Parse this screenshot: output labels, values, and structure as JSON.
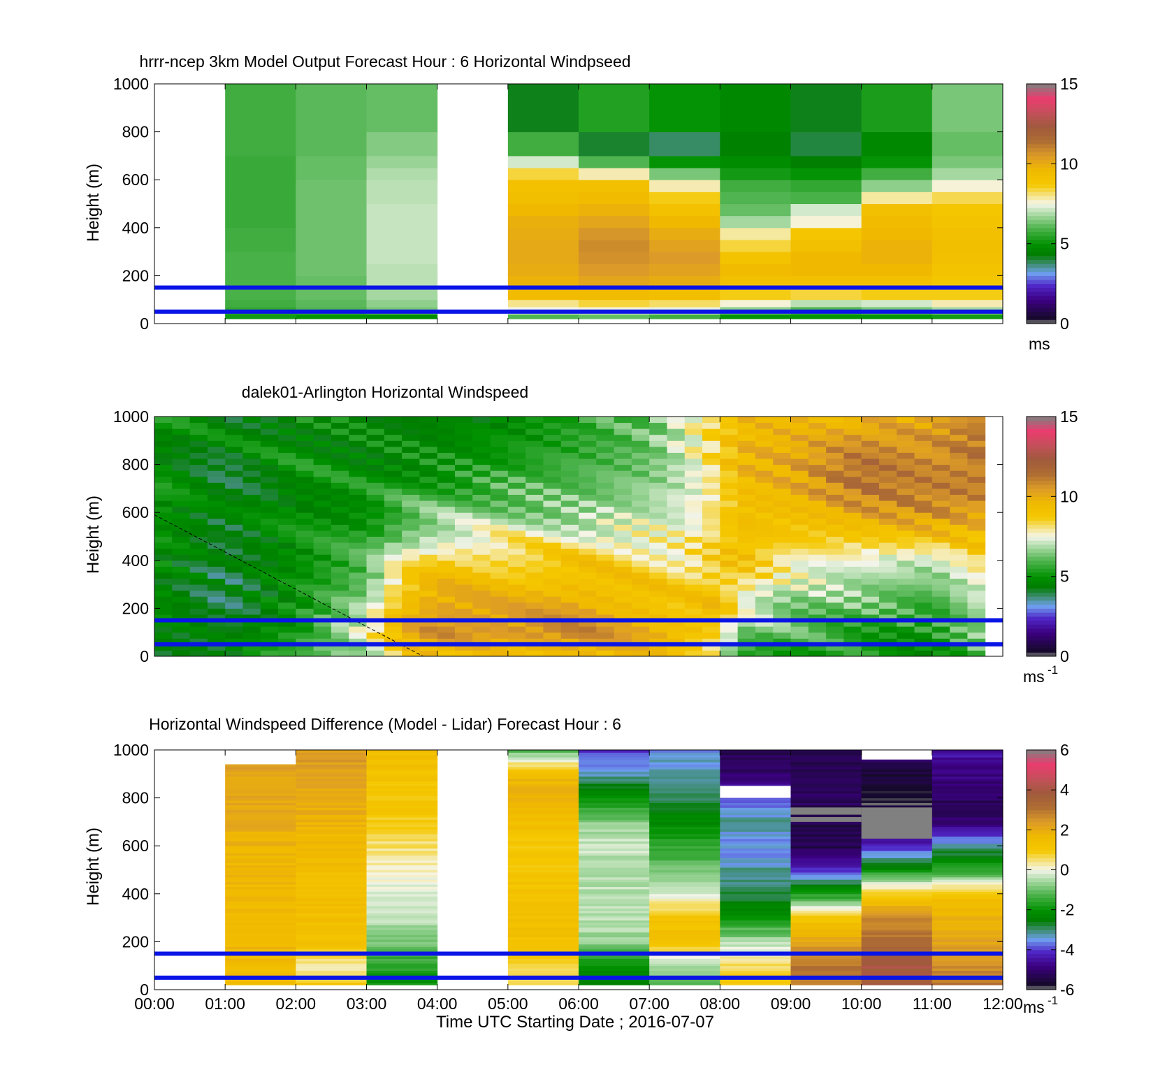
{
  "figure": {
    "xlabel": "Time UTC  Starting Date ; 2016-07-07"
  },
  "chart_data": [
    {
      "type": "heatmap",
      "title": "hrrr-ncep 3km Model Output   Forecast Hour : 6 Horizontal Windpseed",
      "xlabel": "",
      "ylabel": "Height (m)",
      "xlim": [
        0,
        12
      ],
      "ylim": [
        0,
        1000
      ],
      "y_ticks": [
        "0",
        "200",
        "400",
        "600",
        "800",
        "1000"
      ],
      "x_ticks": [
        "00:00",
        "01:00",
        "02:00",
        "03:00",
        "04:00",
        "05:00",
        "06:00",
        "07:00",
        "08:00",
        "09:00",
        "10:00",
        "11:00",
        "12:00"
      ],
      "show_x_tick_labels": false,
      "height_levels_m": [
        20,
        40,
        70,
        100,
        150,
        200,
        250,
        300,
        350,
        400,
        450,
        500,
        550,
        600,
        650,
        700,
        800,
        1000
      ],
      "hours": [
        0,
        1,
        2,
        3,
        4,
        5,
        6,
        7,
        8,
        9,
        10,
        11
      ],
      "values_ms": [
        null,
        [
          5.2,
          5.6,
          5.8,
          5.9,
          5.9,
          5.9,
          5.9,
          5.8,
          5.8,
          5.7,
          5.7,
          5.7,
          5.7,
          5.7,
          5.7,
          5.8,
          5.8
        ],
        [
          5.0,
          6.0,
          6.1,
          6.2,
          6.2,
          6.3,
          6.3,
          6.3,
          6.3,
          6.3,
          6.3,
          6.3,
          6.3,
          6.2,
          6.2,
          6.1,
          6.1
        ],
        [
          4.8,
          6.4,
          6.6,
          6.8,
          7.0,
          7.0,
          7.1,
          7.1,
          7.1,
          7.1,
          7.1,
          7.0,
          7.0,
          6.9,
          6.7,
          6.5,
          6.2
        ],
        null,
        [
          6.0,
          7.5,
          8.0,
          9.4,
          9.8,
          10.0,
          10.1,
          10.1,
          10.0,
          9.9,
          9.6,
          9.3,
          9.1,
          8.4,
          7.2,
          5.8,
          4.2
        ],
        [
          6.2,
          7.6,
          8.4,
          9.5,
          10.2,
          10.5,
          10.7,
          10.8,
          10.6,
          10.2,
          9.8,
          9.4,
          9.2,
          7.8,
          6.0,
          4.1,
          5.4
        ],
        [
          5.8,
          7.4,
          8.2,
          9.3,
          10.0,
          10.3,
          10.5,
          10.3,
          10.0,
          9.6,
          9.1,
          8.6,
          7.8,
          6.4,
          5.0,
          3.8,
          5.0
        ],
        [
          5.0,
          6.6,
          7.6,
          8.6,
          9.2,
          9.4,
          9.0,
          8.4,
          7.9,
          6.8,
          6.2,
          6.0,
          5.8,
          5.2,
          4.8,
          4.5,
          4.7
        ],
        [
          5.0,
          6.0,
          7.0,
          8.4,
          9.2,
          9.6,
          9.6,
          9.2,
          8.9,
          7.6,
          7.2,
          5.9,
          5.6,
          5.0,
          4.4,
          4.0,
          4.2
        ],
        [
          5.0,
          6.4,
          7.2,
          8.6,
          9.2,
          9.6,
          9.8,
          9.8,
          9.6,
          9.4,
          9.2,
          7.9,
          6.6,
          5.8,
          5.0,
          4.7,
          5.3
        ],
        [
          5.2,
          6.8,
          7.8,
          8.6,
          8.8,
          9.0,
          9.2,
          9.3,
          9.2,
          9.0,
          8.8,
          8.3,
          7.6,
          6.8,
          6.4,
          6.2,
          6.4
        ]
      ],
      "reference_lines_m": [
        50,
        150
      ],
      "colorbar": {
        "min": 0,
        "max": 15,
        "ticks": [
          "0",
          "5",
          "10",
          "15"
        ],
        "unit": "ms"
      }
    },
    {
      "type": "heatmap",
      "title": "dalek01-Arlington  Horizontal Windspeed",
      "xlabel": "",
      "ylabel": "Height (m)",
      "xlim": [
        0,
        12
      ],
      "ylim": [
        0,
        1000
      ],
      "y_ticks": [
        "0",
        "200",
        "400",
        "600",
        "800",
        "1000"
      ],
      "x_ticks": [
        "00:00",
        "01:00",
        "02:00",
        "03:00",
        "04:00",
        "05:00",
        "06:00",
        "07:00",
        "08:00",
        "09:00",
        "10:00",
        "11:00",
        "12:00"
      ],
      "show_x_tick_labels": false,
      "time_step_hours": 0.25,
      "time_end_hours": 11.75,
      "profile_anchors_hours": [
        0,
        1,
        2,
        3,
        3.5,
        4,
        5,
        6,
        7,
        7.5,
        8,
        8.25,
        9,
        10,
        11,
        11.75
      ],
      "profile_levels_m": [
        0,
        100,
        200,
        300,
        400,
        500,
        600,
        700,
        800,
        900,
        1000
      ],
      "profile_anchor_values_ms": [
        [
          4.8,
          4.6,
          4.6,
          4.7,
          4.8,
          4.9,
          5.0,
          5.0,
          5.0,
          5.0,
          5.0
        ],
        [
          4.4,
          4.0,
          3.9,
          3.9,
          4.0,
          4.1,
          4.2,
          4.3,
          4.4,
          4.5,
          4.5
        ],
        [
          5.6,
          5.2,
          5.0,
          4.9,
          4.8,
          4.9,
          5.0,
          5.0,
          5.0,
          4.9,
          4.9
        ],
        [
          6.6,
          7.6,
          6.8,
          6.2,
          5.9,
          5.6,
          5.3,
          5.0,
          4.9,
          4.8,
          4.7
        ],
        [
          8.6,
          10.0,
          9.3,
          8.6,
          7.8,
          6.8,
          6.0,
          5.4,
          5.0,
          4.8,
          4.6
        ],
        [
          9.3,
          10.8,
          10.2,
          9.6,
          8.8,
          7.4,
          6.4,
          5.6,
          5.0,
          4.8,
          4.5
        ],
        [
          9.0,
          10.5,
          10.0,
          9.4,
          8.7,
          7.8,
          6.6,
          6.0,
          5.4,
          5.2,
          5.0
        ],
        [
          9.4,
          10.8,
          10.4,
          9.7,
          9.0,
          7.6,
          6.6,
          6.2,
          6.0,
          5.8,
          5.8
        ],
        [
          9.2,
          10.2,
          9.6,
          9.0,
          8.2,
          7.6,
          7.1,
          6.8,
          6.6,
          6.4,
          6.2
        ],
        [
          8.7,
          9.8,
          9.0,
          8.6,
          8.0,
          7.6,
          7.4,
          7.4,
          7.4,
          7.4,
          7.4
        ],
        [
          8.0,
          9.0,
          9.2,
          9.0,
          8.8,
          8.6,
          8.5,
          8.5,
          8.6,
          8.6,
          8.8
        ],
        [
          6.0,
          6.6,
          7.4,
          8.6,
          9.2,
          9.4,
          9.5,
          9.6,
          9.7,
          9.6,
          9.5
        ],
        [
          5.4,
          5.9,
          6.6,
          7.2,
          7.8,
          9.0,
          9.6,
          10.0,
          10.2,
          10.0,
          9.7
        ],
        [
          5.0,
          5.6,
          6.2,
          6.8,
          7.6,
          9.2,
          10.4,
          11.4,
          11.6,
          10.8,
          9.6
        ],
        [
          5.0,
          5.2,
          5.6,
          6.4,
          7.4,
          9.4,
          10.8,
          11.2,
          11.0,
          10.4,
          9.8
        ],
        [
          6.0,
          6.6,
          7.2,
          7.8,
          8.8,
          9.4,
          10.4,
          11.2,
          11.2,
          11.0,
          11.4
        ]
      ],
      "data_missing_hours": [
        [
          0,
          0
        ],
        [
          11.75,
          12
        ]
      ],
      "dashed_line": {
        "from": [
          0,
          590
        ],
        "to": [
          3.8,
          0
        ]
      },
      "reference_lines_m": [
        50,
        150
      ],
      "colorbar": {
        "min": 0,
        "max": 15,
        "ticks": [
          "0",
          "5",
          "10",
          "15"
        ],
        "unit": "ms",
        "unit_exp": "-1"
      }
    },
    {
      "type": "heatmap",
      "title": "Horizontal Windspeed Difference (Model - Lidar) Forecast Hour : 6",
      "xlabel": "Time UTC  Starting Date ; 2016-07-07",
      "ylabel": "Height (m)",
      "xlim": [
        0,
        12
      ],
      "ylim": [
        0,
        1000
      ],
      "y_ticks": [
        "0",
        "200",
        "400",
        "600",
        "800",
        "1000"
      ],
      "x_ticks": [
        "00:00",
        "01:00",
        "02:00",
        "03:00",
        "04:00",
        "05:00",
        "06:00",
        "07:00",
        "08:00",
        "09:00",
        "10:00",
        "11:00",
        "12:00"
      ],
      "show_x_tick_labels": true,
      "hours": [
        0,
        1,
        2,
        3,
        4,
        5,
        6,
        7,
        8,
        9,
        10,
        11
      ],
      "valid_range_m": [
        null,
        [
          20,
          940
        ],
        [
          20,
          1000
        ],
        [
          20,
          1000
        ],
        null,
        [
          20,
          1000
        ],
        [
          20,
          1000
        ],
        [
          20,
          1000
        ],
        [
          20,
          1000
        ],
        [
          20,
          1000
        ],
        [
          20,
          960
        ],
        [
          20,
          1000
        ]
      ],
      "profile_levels_m": [
        0,
        100,
        200,
        300,
        400,
        500,
        600,
        700,
        800,
        900,
        1000
      ],
      "values_ms": [
        null,
        [
          1.3,
          1.5,
          1.7,
          1.6,
          1.6,
          1.7,
          1.8,
          2.0,
          2.1,
          2.2,
          2.2
        ],
        [
          1.2,
          0.2,
          1.4,
          1.4,
          1.4,
          1.5,
          1.6,
          1.8,
          2.0,
          2.2,
          2.4
        ],
        [
          -2.2,
          -1.6,
          -0.9,
          -0.3,
          -0.1,
          0.2,
          0.5,
          0.9,
          1.1,
          1.2,
          1.3
        ],
        null,
        [
          0.6,
          0.8,
          1.3,
          1.4,
          1.3,
          1.0,
          1.0,
          1.4,
          1.8,
          1.6,
          -1.2
        ],
        [
          -2.6,
          -2.1,
          -0.7,
          -0.4,
          -0.4,
          -0.6,
          -0.2,
          -0.8,
          -2.0,
          -3.2,
          -4.0
        ],
        [
          -1.2,
          -0.5,
          1.3,
          1.2,
          -0.2,
          -1.0,
          -1.6,
          -2.2,
          -2.8,
          -3.2,
          -3.6
        ],
        [
          1.0,
          0.6,
          -0.5,
          -1.9,
          -2.8,
          -3.2,
          -3.6,
          -3.2,
          -4.0,
          -5.0,
          -5.4
        ],
        [
          2.8,
          3.0,
          2.2,
          1.0,
          -1.8,
          -4.2,
          -5.4,
          -5.4,
          -5.2,
          -5.2,
          -5.3
        ],
        [
          3.8,
          4.0,
          3.2,
          2.6,
          1.0,
          -2.0,
          -4.2,
          -5.6,
          -5.8,
          -5.6,
          -4.8
        ],
        [
          3.2,
          2.6,
          2.2,
          1.8,
          1.2,
          -1.6,
          -3.2,
          -5.0,
          -5.2,
          -4.8,
          -4.4
        ]
      ],
      "missing_bands": [
        {
          "hour": 8,
          "from_m": 800,
          "to_m": 850,
          "kind": "blank"
        },
        {
          "hour": 9,
          "from_m": 700,
          "to_m": 720,
          "kind": "gray"
        },
        {
          "hour": 9,
          "from_m": 730,
          "to_m": 760,
          "kind": "gray"
        },
        {
          "hour": 10,
          "from_m": 630,
          "to_m": 760,
          "kind": "gray"
        }
      ],
      "reference_lines_m": [
        50,
        150
      ],
      "colorbar": {
        "min": -6,
        "max": 6,
        "ticks": [
          "-6",
          "-4",
          "-2",
          "0",
          "2",
          "4",
          "6"
        ],
        "unit": "ms",
        "unit_exp": "-1"
      }
    }
  ]
}
